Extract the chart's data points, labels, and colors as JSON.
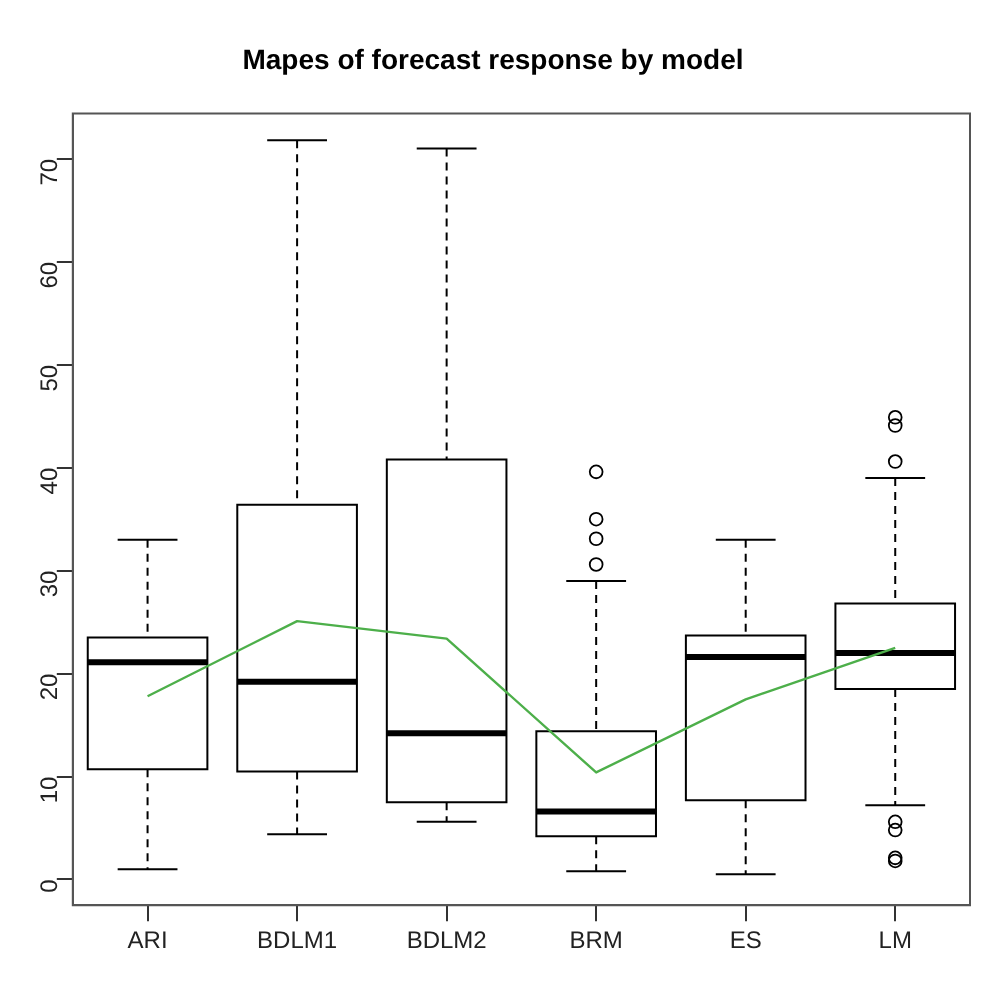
{
  "chart_data": {
    "type": "box",
    "title": "Mapes of forecast response by model",
    "categories": [
      "ARI",
      "BDLM1",
      "BDLM2",
      "BRM",
      "ES",
      "LM"
    ],
    "boxes": [
      {
        "low": 1.0,
        "q1": 10.7,
        "median": 21.1,
        "q3": 23.5,
        "high": 33.0
      },
      {
        "low": 4.4,
        "q1": 10.5,
        "median": 19.2,
        "q3": 36.4,
        "high": 71.8
      },
      {
        "low": 5.6,
        "q1": 7.5,
        "median": 14.2,
        "q3": 40.8,
        "high": 71.0
      },
      {
        "low": 0.8,
        "q1": 4.2,
        "median": 6.6,
        "q3": 14.4,
        "high": 29.0,
        "outliers": [
          39.6,
          35.0,
          33.1,
          30.6
        ]
      },
      {
        "low": 0.5,
        "q1": 7.7,
        "median": 21.6,
        "q3": 23.7,
        "high": 33.0
      },
      {
        "low": 7.2,
        "q1": 18.5,
        "median": 22.0,
        "q3": 26.8,
        "high": 39.0,
        "outliers": [
          44.9,
          44.1,
          40.6,
          5.6,
          4.8,
          2.1,
          1.8
        ]
      }
    ],
    "series": [
      {
        "type": "line",
        "color": "#4daf4a",
        "values": [
          17.8,
          25.1,
          23.4,
          10.4,
          17.5,
          22.5
        ]
      }
    ],
    "marker": "none",
    "line_style": "solid",
    "ylim": [
      -2.5,
      74.4
    ],
    "yticks": [
      0,
      10,
      20,
      30,
      40,
      50,
      60,
      70
    ],
    "grid": false,
    "legend": false
  }
}
